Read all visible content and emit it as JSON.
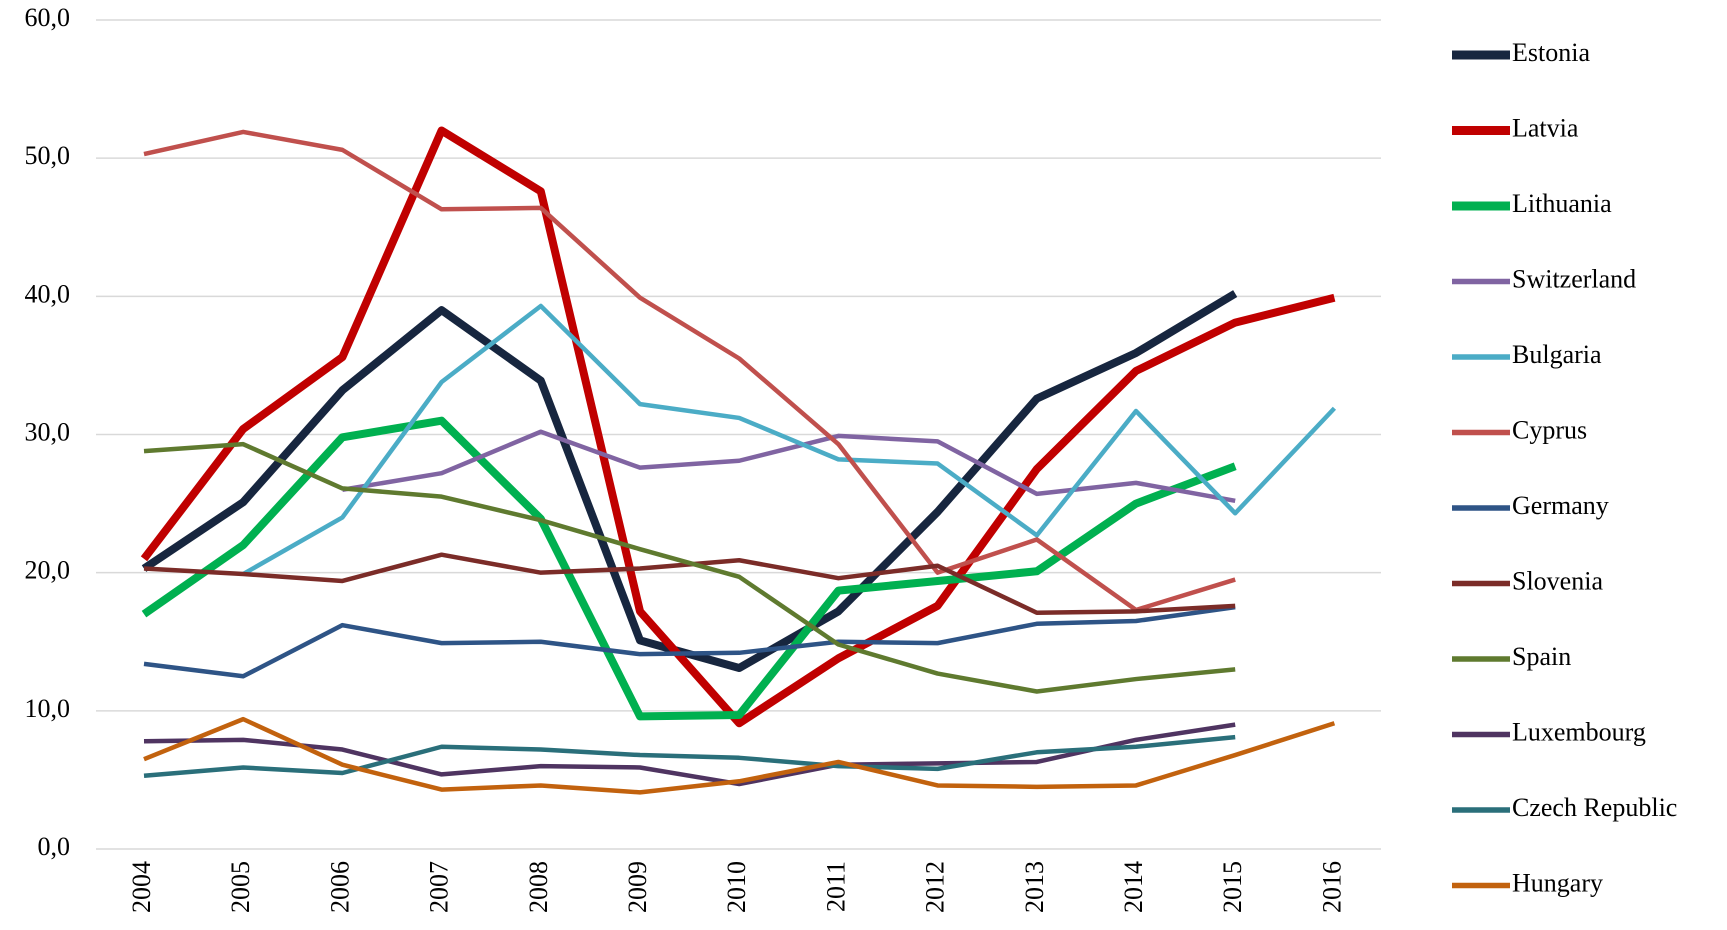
{
  "chart_data": {
    "type": "line",
    "categories": [
      "2004",
      "2005",
      "2006",
      "2007",
      "2008",
      "2009",
      "2010",
      "2011",
      "2012",
      "2013",
      "2014",
      "2015",
      "2016"
    ],
    "ylim": [
      0,
      60
    ],
    "yticks": [
      {
        "value": 0,
        "label": "0,0"
      },
      {
        "value": 10,
        "label": "10,0"
      },
      {
        "value": 20,
        "label": "20,0"
      },
      {
        "value": 30,
        "label": "30,0"
      },
      {
        "value": 40,
        "label": "40,0"
      },
      {
        "value": 50,
        "label": "50,0"
      },
      {
        "value": 60,
        "label": "60,0"
      }
    ],
    "grid": true,
    "legend": "right",
    "series": [
      {
        "name": "Estonia",
        "color": "#17263f",
        "values": [
          20.3,
          25.1,
          33.2,
          39.0,
          33.9,
          15.1,
          13.1,
          17.2,
          24.4,
          32.6,
          35.9,
          40.2,
          null
        ]
      },
      {
        "name": "Latvia",
        "color": "#c00000",
        "values": [
          21.0,
          30.4,
          35.6,
          52.0,
          47.6,
          17.2,
          9.1,
          13.8,
          17.6,
          27.5,
          34.6,
          38.1,
          39.9
        ]
      },
      {
        "name": "Lithuania",
        "color": "#00b050",
        "values": [
          17.0,
          22.0,
          29.8,
          31.0,
          23.9,
          9.6,
          9.7,
          18.7,
          19.4,
          20.1,
          25.0,
          27.7,
          null
        ]
      },
      {
        "name": "Switzerland",
        "color": "#8064a2",
        "values": [
          null,
          null,
          26.0,
          27.2,
          30.2,
          27.6,
          28.1,
          29.9,
          29.5,
          25.7,
          26.5,
          25.2,
          null
        ]
      },
      {
        "name": "Bulgaria",
        "color": "#4bacc6",
        "values": [
          null,
          19.9,
          24.0,
          33.8,
          39.3,
          32.2,
          31.2,
          28.2,
          27.9,
          22.7,
          31.7,
          24.3,
          31.9
        ]
      },
      {
        "name": "Cyprus",
        "color": "#c0504d",
        "values": [
          50.3,
          51.9,
          50.6,
          46.3,
          46.4,
          39.9,
          35.5,
          29.3,
          20.0,
          22.4,
          17.3,
          19.5,
          null
        ]
      },
      {
        "name": "Germany",
        "color": "#2e5486",
        "values": [
          13.4,
          12.5,
          16.2,
          14.9,
          15.0,
          14.1,
          14.2,
          15.0,
          14.9,
          16.3,
          16.5,
          17.5,
          null
        ]
      },
      {
        "name": "Slovenia",
        "color": "#7b2c28",
        "values": [
          20.3,
          19.9,
          19.4,
          21.3,
          20.0,
          20.3,
          20.9,
          19.6,
          20.5,
          17.1,
          17.2,
          17.6,
          null
        ]
      },
      {
        "name": "Spain",
        "color": "#5f7a2f",
        "values": [
          28.8,
          29.3,
          26.1,
          25.5,
          23.8,
          21.7,
          19.7,
          14.8,
          12.7,
          11.4,
          12.3,
          13.0,
          null
        ]
      },
      {
        "name": "Luxembourg",
        "color": "#4f3461",
        "values": [
          7.8,
          7.9,
          7.2,
          5.4,
          6.0,
          5.9,
          4.7,
          6.1,
          6.2,
          6.3,
          7.9,
          9.0,
          null
        ]
      },
      {
        "name": "Czech Republic",
        "color": "#2a6f7a",
        "values": [
          5.3,
          5.9,
          5.5,
          7.4,
          7.2,
          6.8,
          6.6,
          6.0,
          5.8,
          7.0,
          7.4,
          8.1,
          null
        ]
      },
      {
        "name": "Hungary",
        "color": "#c2620e",
        "values": [
          6.5,
          9.4,
          6.1,
          4.3,
          4.6,
          4.1,
          4.9,
          6.3,
          4.6,
          4.5,
          4.6,
          6.8,
          9.1
        ]
      }
    ]
  }
}
